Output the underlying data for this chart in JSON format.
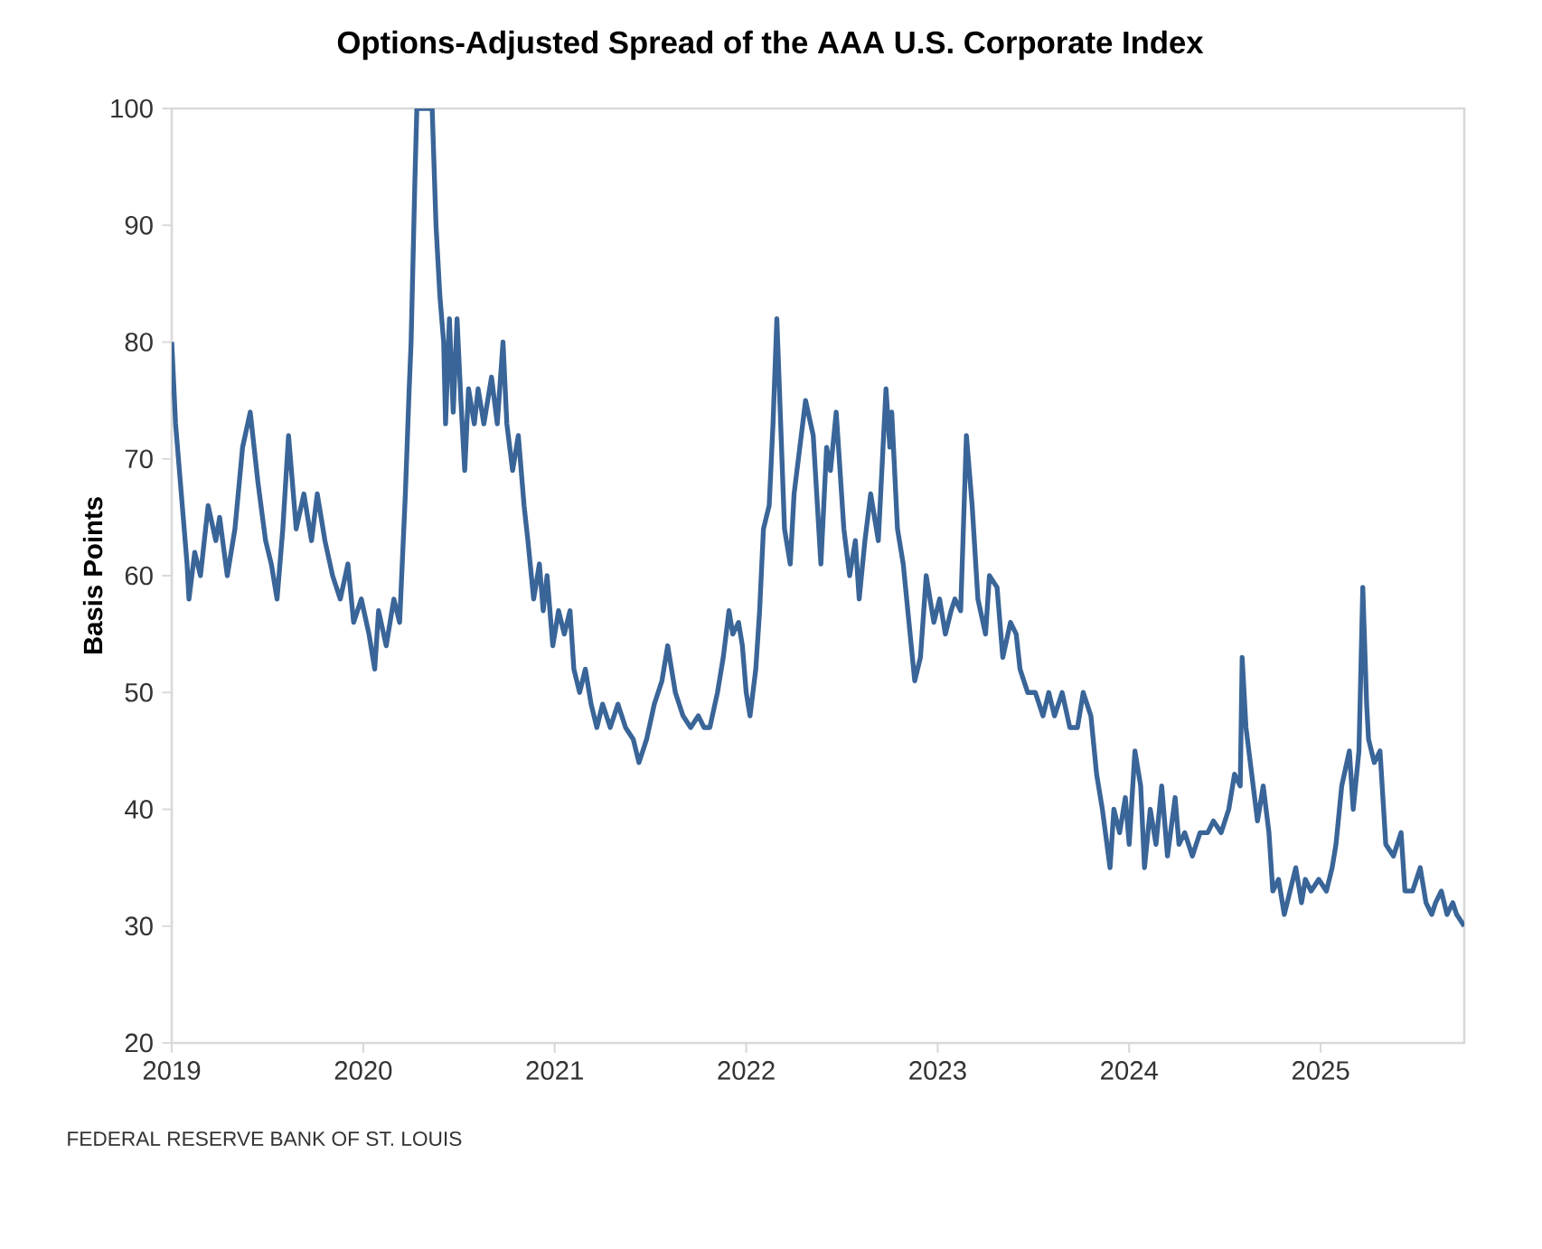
{
  "chart_data": {
    "type": "line",
    "title": "Options-Adjusted Spread of the AAA U.S. Corporate Index",
    "ylabel": "Basis Points",
    "color": "#3a6598",
    "line_style": "solid",
    "xlim": [
      2019,
      2025.75
    ],
    "ylim": [
      20,
      100
    ],
    "xticks": [
      2019,
      2020,
      2021,
      2022,
      2023,
      2024,
      2025
    ],
    "yticks": [
      20,
      30,
      40,
      50,
      60,
      70,
      80,
      90,
      100
    ],
    "x": [
      2019.0,
      2019.02,
      2019.04,
      2019.06,
      2019.08,
      2019.09,
      2019.12,
      2019.15,
      2019.19,
      2019.23,
      2019.25,
      2019.29,
      2019.33,
      2019.37,
      2019.41,
      2019.45,
      2019.49,
      2019.52,
      2019.55,
      2019.58,
      2019.61,
      2019.65,
      2019.69,
      2019.73,
      2019.76,
      2019.8,
      2019.84,
      2019.88,
      2019.92,
      2019.95,
      2019.99,
      2020.03,
      2020.06,
      2020.08,
      2020.12,
      2020.16,
      2020.19,
      2020.22,
      2020.24,
      2020.25,
      2020.27,
      2020.28,
      2020.32,
      2020.36,
      2020.38,
      2020.4,
      2020.42,
      2020.43,
      2020.45,
      2020.47,
      2020.49,
      2020.51,
      2020.53,
      2020.55,
      2020.58,
      2020.6,
      2020.63,
      2020.67,
      2020.7,
      2020.73,
      2020.75,
      2020.78,
      2020.81,
      2020.84,
      2020.86,
      2020.89,
      2020.92,
      2020.94,
      2020.96,
      2020.99,
      2021.02,
      2021.05,
      2021.08,
      2021.1,
      2021.13,
      2021.16,
      2021.19,
      2021.22,
      2021.25,
      2021.29,
      2021.33,
      2021.37,
      2021.41,
      2021.44,
      2021.48,
      2021.52,
      2021.56,
      2021.59,
      2021.63,
      2021.67,
      2021.71,
      2021.75,
      2021.78,
      2021.81,
      2021.85,
      2021.88,
      2021.91,
      2021.93,
      2021.96,
      2021.98,
      2022.0,
      2022.02,
      2022.05,
      2022.07,
      2022.09,
      2022.12,
      2022.14,
      2022.16,
      2022.18,
      2022.2,
      2022.23,
      2022.25,
      2022.28,
      2022.31,
      2022.35,
      2022.39,
      2022.42,
      2022.44,
      2022.47,
      2022.51,
      2022.54,
      2022.57,
      2022.59,
      2022.62,
      2022.65,
      2022.69,
      2022.73,
      2022.75,
      2022.76,
      2022.79,
      2022.82,
      2022.85,
      2022.88,
      2022.91,
      2022.94,
      2022.98,
      2023.01,
      2023.04,
      2023.07,
      2023.09,
      2023.12,
      2023.15,
      2023.18,
      2023.21,
      2023.25,
      2023.27,
      2023.31,
      2023.34,
      2023.38,
      2023.41,
      2023.43,
      2023.47,
      2023.51,
      2023.55,
      2023.58,
      2023.61,
      2023.65,
      2023.69,
      2023.73,
      2023.76,
      2023.8,
      2023.83,
      2023.86,
      2023.9,
      2023.92,
      2023.95,
      2023.98,
      2024.0,
      2024.03,
      2024.06,
      2024.08,
      2024.11,
      2024.14,
      2024.17,
      2024.2,
      2024.24,
      2024.26,
      2024.29,
      2024.33,
      2024.37,
      2024.41,
      2024.44,
      2024.48,
      2024.52,
      2024.55,
      2024.58,
      2024.59,
      2024.61,
      2024.64,
      2024.67,
      2024.7,
      2024.73,
      2024.75,
      2024.78,
      2024.81,
      2024.84,
      2024.87,
      2024.9,
      2024.92,
      2024.95,
      2024.99,
      2025.03,
      2025.06,
      2025.08,
      2025.11,
      2025.15,
      2025.17,
      2025.2,
      2025.22,
      2025.24,
      2025.25,
      2025.28,
      2025.31,
      2025.34,
      2025.38,
      2025.42,
      2025.44,
      2025.48,
      2025.52,
      2025.55,
      2025.58,
      2025.6,
      2025.63,
      2025.66,
      2025.69,
      2025.71,
      2025.75
    ],
    "values": [
      80,
      73,
      69,
      65,
      61,
      58,
      62,
      60,
      66,
      63,
      65,
      60,
      64,
      71,
      74,
      68,
      63,
      61,
      58,
      64,
      72,
      64,
      67,
      63,
      67,
      63,
      60,
      58,
      61,
      56,
      58,
      55,
      52,
      57,
      54,
      58,
      56,
      67,
      76,
      80,
      94,
      100,
      null,
      100,
      90,
      84,
      80,
      73,
      82,
      74,
      82,
      75,
      69,
      76,
      73,
      76,
      73,
      77,
      73,
      80,
      73,
      69,
      72,
      66,
      63,
      58,
      61,
      57,
      60,
      54,
      57,
      55,
      57,
      52,
      50,
      52,
      49,
      47,
      49,
      47,
      49,
      47,
      46,
      44,
      46,
      49,
      51,
      54,
      50,
      48,
      47,
      48,
      47,
      47,
      50,
      53,
      57,
      55,
      56,
      54,
      50,
      48,
      52,
      57,
      64,
      66,
      73,
      82,
      73,
      64,
      61,
      67,
      71,
      75,
      72,
      61,
      71,
      69,
      74,
      64,
      60,
      63,
      58,
      63,
      67,
      63,
      76,
      71,
      74,
      64,
      61,
      56,
      51,
      53,
      60,
      56,
      58,
      55,
      57,
      58,
      57,
      72,
      66,
      58,
      55,
      60,
      59,
      53,
      56,
      55,
      52,
      50,
      50,
      48,
      50,
      48,
      50,
      47,
      47,
      50,
      48,
      43,
      40,
      35,
      40,
      38,
      41,
      37,
      45,
      42,
      35,
      40,
      37,
      42,
      36,
      41,
      37,
      38,
      36,
      38,
      38,
      39,
      38,
      40,
      43,
      42,
      53,
      47,
      43,
      39,
      42,
      38,
      33,
      34,
      31,
      33,
      35,
      32,
      34,
      33,
      34,
      33,
      35,
      37,
      42,
      45,
      40,
      45,
      59,
      49,
      46,
      44,
      45,
      37,
      36,
      38,
      33,
      33,
      35,
      32,
      31,
      32,
      33,
      31,
      32,
      31,
      30
    ],
    "annotations": [
      "FEDERAL RESERVE BANK OF ST. LOUIS"
    ]
  }
}
